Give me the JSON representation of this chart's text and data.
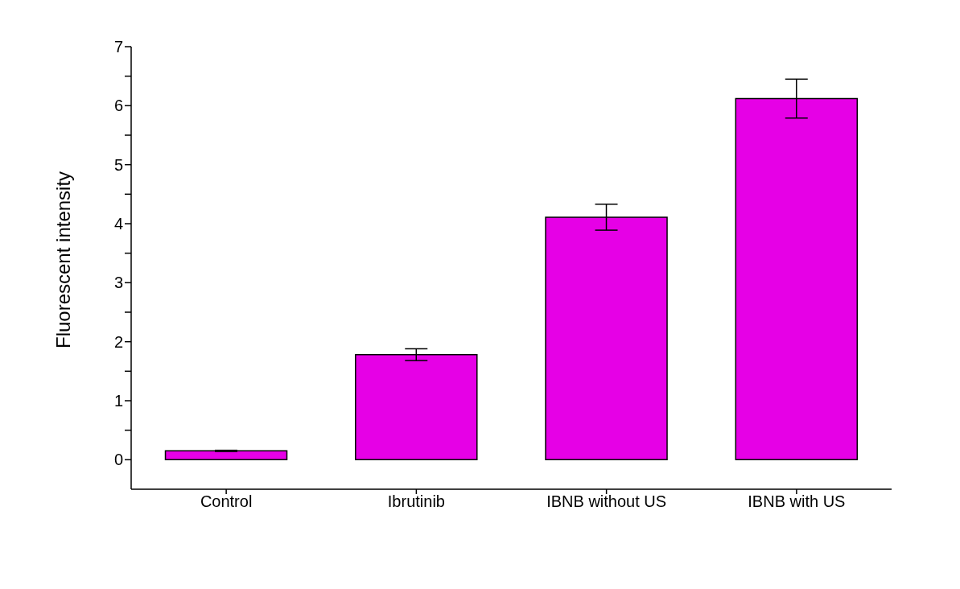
{
  "chart_data": {
    "type": "bar",
    "ylabel": "Fluorescent intensity",
    "categories": [
      "Control",
      "Ibrutinib",
      "IBNB without US",
      "IBNB with US"
    ],
    "values": [
      0.15,
      1.78,
      4.11,
      6.12
    ],
    "errors": [
      0.01,
      0.1,
      0.22,
      0.33
    ],
    "color": "#e600e6",
    "ylim": [
      -0.5,
      7
    ],
    "yticks": [
      0,
      {
        "value": 0.5,
        "label": null
      },
      1,
      {
        "value": 1.5,
        "label": null
      },
      2,
      {
        "value": 2.5,
        "label": null
      },
      3,
      {
        "value": 3.5,
        "label": null
      },
      4,
      {
        "value": 4.5,
        "label": null
      },
      5,
      {
        "value": 5.5,
        "label": null
      },
      6,
      {
        "value": 6.5,
        "label": null
      },
      7
    ],
    "grid": false,
    "legend": false
  }
}
